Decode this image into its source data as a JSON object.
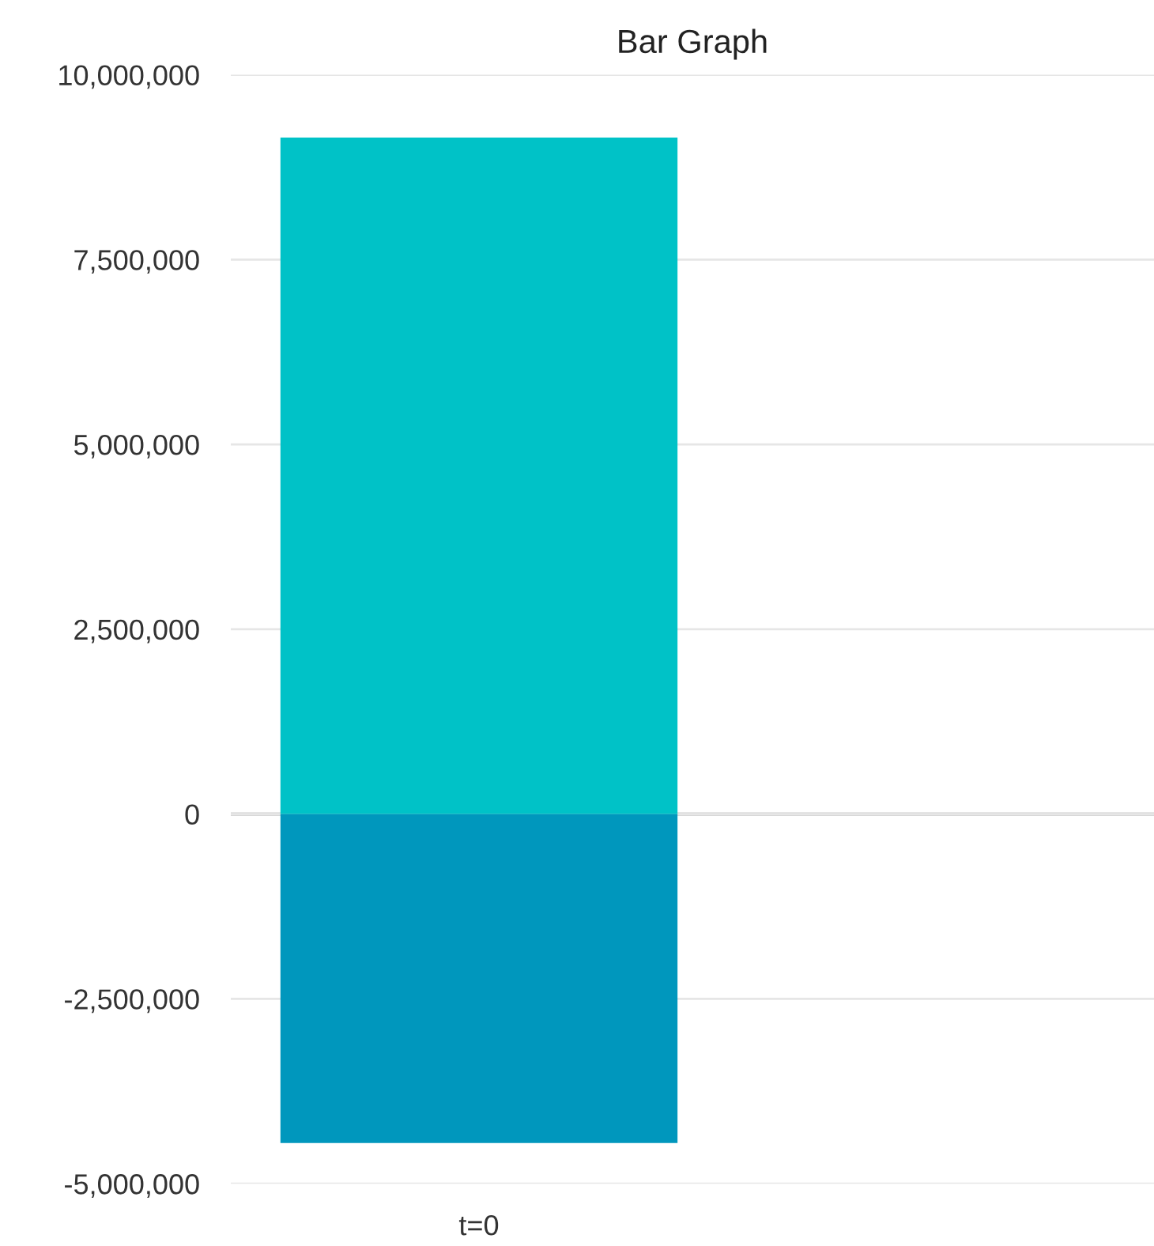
{
  "chart_data": {
    "type": "bar",
    "title": "Bar Graph",
    "categories": [
      "t=0"
    ],
    "stacked": true,
    "series": [
      {
        "color": "#00c2c7",
        "values": [
          9150000
        ]
      },
      {
        "color": "#0097bd",
        "values": [
          -4450000
        ]
      }
    ],
    "ylim": [
      -5000000,
      10000000
    ],
    "yticks": [
      {
        "value": -5000000,
        "label": "-5,000,000"
      },
      {
        "value": -2500000,
        "label": "-2,500,000"
      },
      {
        "value": 0,
        "label": "0"
      },
      {
        "value": 2500000,
        "label": "2,500,000"
      },
      {
        "value": 5000000,
        "label": "5,000,000"
      },
      {
        "value": 7500000,
        "label": "7,500,000"
      },
      {
        "value": 10000000,
        "label": "10,000,000"
      }
    ],
    "grid": "y",
    "legend": false
  }
}
